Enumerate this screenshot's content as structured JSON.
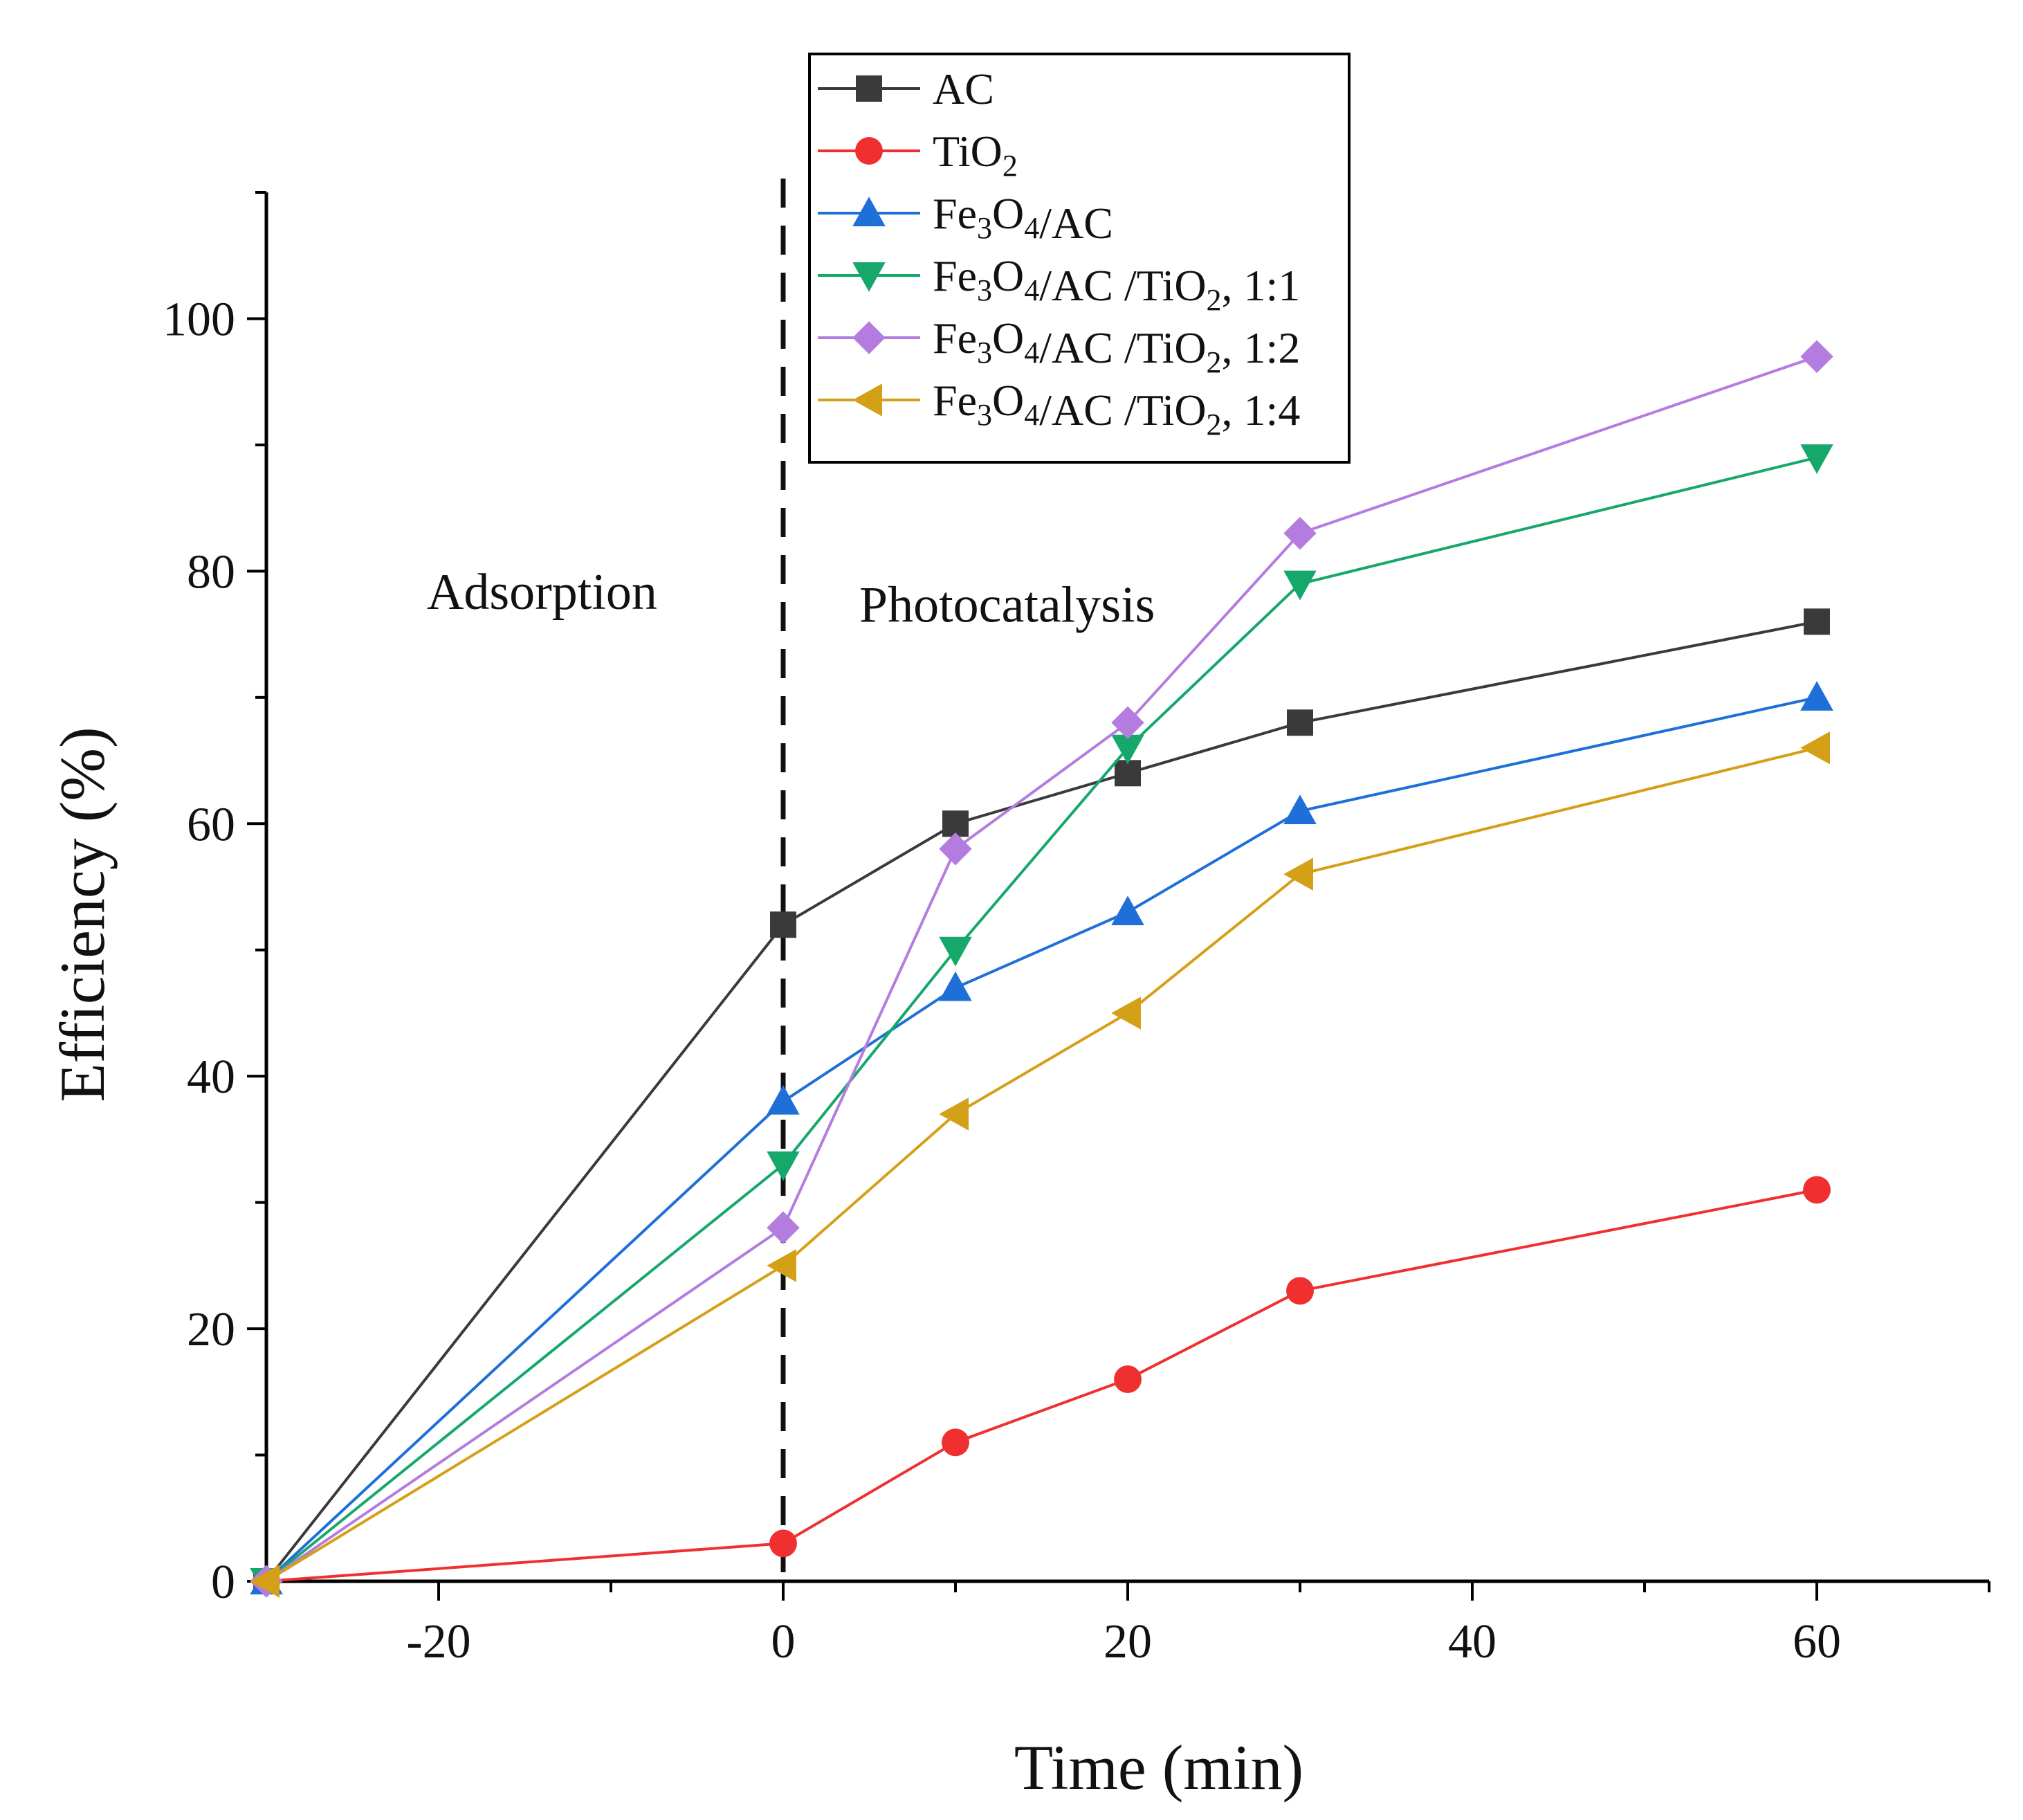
{
  "chart_data": {
    "type": "line",
    "title": "",
    "xlabel": "Time (min)",
    "ylabel": "Efficiency (%)",
    "xlim": [
      -30,
      70
    ],
    "ylim": [
      0,
      110
    ],
    "x_ticks": [
      -20,
      0,
      20,
      40,
      60
    ],
    "x_tick_labels": [
      "-20",
      "0",
      "20",
      "40",
      "60"
    ],
    "y_ticks": [
      0,
      20,
      40,
      60,
      80,
      100
    ],
    "y_tick_labels": [
      "0",
      "20",
      "40",
      "60",
      "80",
      "100"
    ],
    "grid": false,
    "legend_position": "top",
    "x": [
      -30,
      0,
      10,
      20,
      30,
      60
    ],
    "divider": {
      "x": 0,
      "style": "dashed"
    },
    "regions": [
      {
        "label": "Adsorption",
        "x": -14,
        "y": 77
      },
      {
        "label": "Photocatalysis",
        "x": 13,
        "y": 76
      }
    ],
    "series": [
      {
        "name": "AC",
        "base": "AC",
        "sub": "",
        "tail": "",
        "marker": "square",
        "color": "#3a3a3a",
        "values": [
          0,
          52,
          60,
          64,
          68,
          76
        ]
      },
      {
        "name": "TiO2",
        "base": "TiO",
        "sub": "2",
        "tail": "",
        "marker": "circle",
        "color": "#f03030",
        "values": [
          0,
          3,
          11,
          16,
          23,
          31
        ]
      },
      {
        "name": "Fe3O4/AC",
        "base": "Fe3O4/AC",
        "sub": "",
        "tail": "",
        "marker": "triangle-up",
        "color": "#1f6fd8",
        "values": [
          0,
          38,
          47,
          53,
          61,
          70
        ]
      },
      {
        "name": "Fe3O4/AC /TiO2, 1:1",
        "base": "Fe3O4/AC /TiO",
        "sub": "2",
        "tail": ", 1:1",
        "marker": "triangle-down",
        "color": "#16a86a",
        "values": [
          0,
          33,
          50,
          66,
          79,
          89
        ]
      },
      {
        "name": "Fe3O4/AC /TiO2, 1:2",
        "base": "Fe3O4/AC /TiO",
        "sub": "2",
        "tail": ", 1:2",
        "marker": "diamond",
        "color": "#b57cdf",
        "values": [
          0,
          28,
          58,
          68,
          83,
          97
        ]
      },
      {
        "name": "Fe3O4/AC /TiO2, 1:4",
        "base": "Fe3O4/AC /TiO",
        "sub": "2",
        "tail": ", 1:4",
        "marker": "triangle-left",
        "color": "#d4a017",
        "values": [
          0,
          25,
          37,
          45,
          56,
          66
        ]
      }
    ]
  }
}
